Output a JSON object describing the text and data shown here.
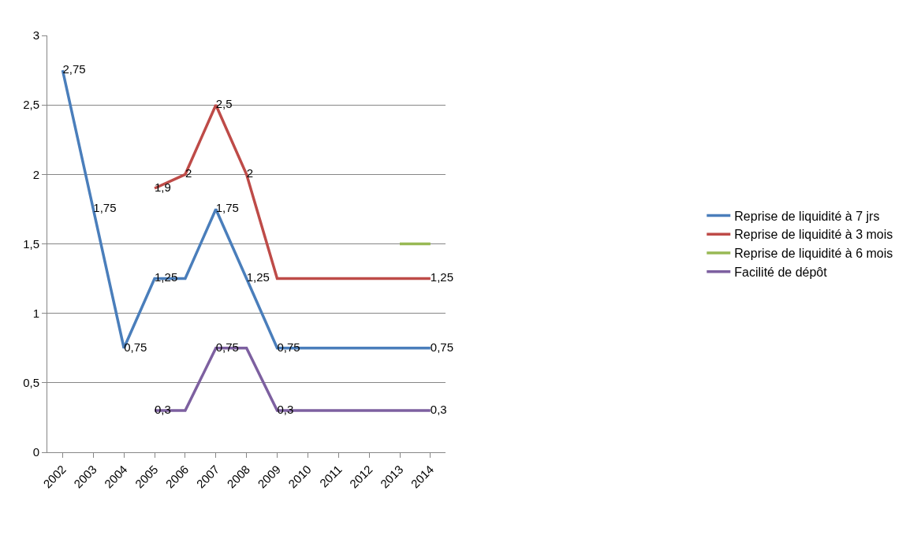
{
  "chart_data": {
    "type": "line",
    "categories": [
      "2002",
      "2003",
      "2004",
      "2005",
      "2006",
      "2007",
      "2008",
      "2009",
      "2010",
      "2011",
      "2012",
      "2013",
      "2014"
    ],
    "series": [
      {
        "name": "Reprise de liquidité à 7 jrs",
        "color": "#4a7ebb",
        "values": [
          2.75,
          1.75,
          0.75,
          1.25,
          1.25,
          1.75,
          1.25,
          0.75,
          0.75,
          0.75,
          0.75,
          0.75,
          0.75
        ],
        "value_labels": [
          "2,75",
          "1,75",
          "0,75",
          "1,25",
          null,
          "1,75",
          "1,25",
          "0,75",
          null,
          null,
          null,
          null,
          "0,75"
        ]
      },
      {
        "name": "Reprise de liquidité à 3 mois",
        "color": "#be4b48",
        "values": [
          null,
          null,
          null,
          1.9,
          2,
          2.5,
          2,
          1.25,
          1.25,
          1.25,
          1.25,
          1.25,
          1.25
        ],
        "value_labels": [
          null,
          null,
          null,
          "1,9",
          "2",
          "2,5",
          "2",
          null,
          null,
          null,
          null,
          null,
          "1,25"
        ]
      },
      {
        "name": "Reprise de liquidité à 6 mois",
        "color": "#98b954",
        "values": [
          null,
          null,
          null,
          null,
          null,
          null,
          null,
          null,
          null,
          null,
          null,
          1.5,
          1.5
        ]
      },
      {
        "name": "Facilité de dépôt",
        "color": "#7d60a0",
        "values": [
          null,
          null,
          null,
          0.3,
          0.3,
          0.75,
          0.75,
          0.3,
          0.3,
          0.3,
          0.3,
          0.3,
          0.3
        ],
        "value_labels": [
          null,
          null,
          null,
          "0,3",
          null,
          "0,75",
          null,
          "0,3",
          null,
          null,
          null,
          null,
          "0,3"
        ]
      }
    ],
    "ylim": [
      0,
      3
    ],
    "yticks": [
      0,
      {
        "value": 0.5,
        "label": "0,5"
      },
      1,
      {
        "value": 1.5,
        "label": "1,5"
      },
      2,
      {
        "value": 2.5,
        "label": "2,5"
      },
      3
    ],
    "grid": "y",
    "legend": "right",
    "marker": "none",
    "line_style": "solid"
  }
}
